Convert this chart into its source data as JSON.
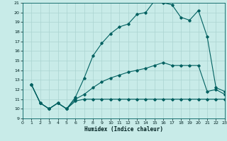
{
  "xlabel": "Humidex (Indice chaleur)",
  "bg_color": "#c8ebe8",
  "grid_color": "#aad4d0",
  "line_color": "#006060",
  "xlim": [
    0,
    23
  ],
  "ylim": [
    9,
    21
  ],
  "xticks": [
    0,
    1,
    2,
    3,
    4,
    5,
    6,
    7,
    8,
    9,
    10,
    11,
    12,
    13,
    14,
    15,
    16,
    17,
    18,
    19,
    20,
    21,
    22,
    23
  ],
  "yticks": [
    9,
    10,
    11,
    12,
    13,
    14,
    15,
    16,
    17,
    18,
    19,
    20,
    21
  ],
  "line_min_x": [
    1,
    2,
    3,
    4,
    5,
    6,
    7,
    8,
    9,
    10,
    11,
    12,
    13,
    14,
    15,
    16,
    17,
    18,
    19,
    20,
    21,
    22,
    23
  ],
  "line_min_y": [
    12.5,
    10.6,
    10.0,
    10.6,
    10.0,
    10.8,
    11.0,
    11.0,
    11.0,
    11.0,
    11.0,
    11.0,
    11.0,
    11.0,
    11.0,
    11.0,
    11.0,
    11.0,
    11.0,
    11.0,
    11.0,
    11.0,
    11.0
  ],
  "line_avg_x": [
    1,
    2,
    3,
    4,
    5,
    6,
    7,
    8,
    9,
    10,
    11,
    12,
    13,
    14,
    15,
    16,
    17,
    18,
    19,
    20,
    21,
    22,
    23
  ],
  "line_avg_y": [
    12.5,
    10.6,
    10.0,
    10.6,
    10.0,
    11.0,
    11.5,
    12.2,
    12.8,
    13.2,
    13.5,
    13.8,
    14.0,
    14.2,
    14.5,
    14.8,
    14.5,
    14.5,
    14.5,
    14.5,
    11.8,
    12.0,
    11.5
  ],
  "line_max_x": [
    1,
    2,
    3,
    4,
    5,
    6,
    7,
    8,
    9,
    10,
    11,
    12,
    13,
    14,
    15,
    16,
    17,
    18,
    19,
    20,
    21,
    22,
    23
  ],
  "line_max_y": [
    12.5,
    10.6,
    10.0,
    10.6,
    10.0,
    11.2,
    13.2,
    15.5,
    16.8,
    17.8,
    18.5,
    18.8,
    19.8,
    20.0,
    21.2,
    21.0,
    20.8,
    19.5,
    19.2,
    20.2,
    17.5,
    12.2,
    11.8
  ]
}
